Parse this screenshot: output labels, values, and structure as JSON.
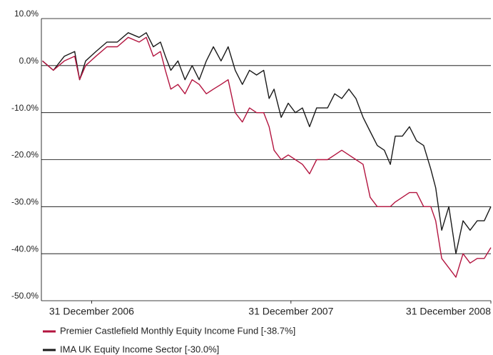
{
  "chart_data": {
    "type": "line",
    "x": [
      "2006-10-02",
      "2006-10-22",
      "2006-11-11",
      "2006-11-30",
      "2006-12-09",
      "2006-12-20",
      "2007-01-08",
      "2007-01-28",
      "2007-02-16",
      "2007-03-08",
      "2007-03-28",
      "2007-04-10",
      "2007-04-23",
      "2007-05-06",
      "2007-05-15",
      "2007-05-25",
      "2007-06-07",
      "2007-06-20",
      "2007-07-03",
      "2007-07-16",
      "2007-07-29",
      "2007-08-11",
      "2007-08-25",
      "2007-09-07",
      "2007-09-20",
      "2007-10-03",
      "2007-10-16",
      "2007-10-29",
      "2007-11-11",
      "2007-11-21",
      "2007-11-30",
      "2007-12-13",
      "2007-12-26",
      "2008-01-08",
      "2008-01-21",
      "2008-02-03",
      "2008-02-16",
      "2008-03-07",
      "2008-03-20",
      "2008-04-02",
      "2008-04-15",
      "2008-04-28",
      "2008-05-11",
      "2008-05-24",
      "2008-06-06",
      "2008-06-19",
      "2008-06-30",
      "2008-07-09",
      "2008-07-22",
      "2008-08-04",
      "2008-08-17",
      "2008-08-30",
      "2008-09-12",
      "2008-09-21",
      "2008-10-02",
      "2008-10-15",
      "2008-10-28",
      "2008-11-10",
      "2008-11-23",
      "2008-12-06",
      "2008-12-19",
      "2008-12-31"
    ],
    "series": [
      {
        "name": "Premier Castlefield Monthly Equity Income Fund [-38.7%]",
        "color": "#b3143f",
        "values": [
          1,
          -1,
          1,
          2,
          -3,
          0,
          2,
          4,
          4,
          6,
          5,
          6,
          2,
          3,
          -1,
          -5,
          -4,
          -6,
          -3,
          -4,
          -6,
          -5,
          -4,
          -3,
          -10,
          -12,
          -9,
          -10,
          -10,
          -13,
          -18,
          -20,
          -19,
          -20,
          -21,
          -23,
          -20,
          -20,
          -19,
          -18,
          -19,
          -20,
          -21,
          -28,
          -30,
          -30,
          -30,
          -29,
          -28,
          -27,
          -27,
          -30,
          -30,
          -33,
          -41,
          -43,
          -45,
          -40,
          -42,
          -41,
          -41,
          -38.7
        ]
      },
      {
        "name": "IMA UK Equity Income Sector [-30.0%]",
        "color": "#1a1a1a",
        "values": [
          1,
          -1,
          2,
          3,
          -3,
          1,
          3,
          5,
          5,
          7,
          6,
          7,
          4,
          5,
          2,
          -1,
          1,
          -3,
          0,
          -3,
          1,
          4,
          1,
          4,
          -1,
          -4,
          -1,
          -2,
          -1,
          -7,
          -5,
          -11,
          -8,
          -10,
          -9,
          -13,
          -9,
          -9,
          -6,
          -7,
          -5,
          -7,
          -11,
          -14,
          -17,
          -18,
          -21,
          -15,
          -15,
          -13,
          -16,
          -17,
          -22,
          -26,
          -35,
          -30,
          -40,
          -33,
          -35,
          -33,
          -33,
          -30
        ]
      }
    ],
    "xlim": [
      "2006-09-30",
      "2008-12-31"
    ],
    "xticks": [
      {
        "value": "2006-12-31",
        "label": "31 December 2006"
      },
      {
        "value": "2007-12-31",
        "label": "31 December 2007"
      },
      {
        "value": "2008-12-31",
        "label": "31 December 2008"
      }
    ],
    "ylim": [
      -50,
      10
    ],
    "yticks": [
      {
        "value": 10,
        "label": "10.0%"
      },
      {
        "value": 0,
        "label": "0.0%"
      },
      {
        "value": -10,
        "label": "-10.0%"
      },
      {
        "value": -20,
        "label": "-20.0%"
      },
      {
        "value": -30,
        "label": "-30.0%"
      },
      {
        "value": -40,
        "label": "-40.0%"
      },
      {
        "value": -50,
        "label": "-50.0%"
      }
    ],
    "grid": true
  }
}
